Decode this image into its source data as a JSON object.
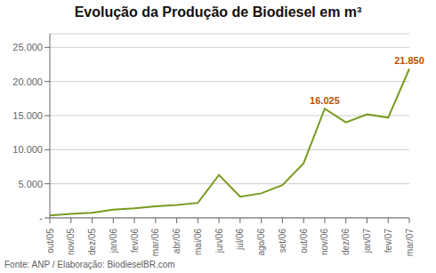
{
  "chart_data": {
    "type": "line",
    "title": "Evolução da Produção de Biodiesel em m³",
    "footnote": "Fonte: ANP / Elaboração: BiodieselBR.com",
    "categories": [
      "out/05",
      "nov/05",
      "dez/05",
      "jan/06",
      "fev/06",
      "mar/06",
      "abr/06",
      "mai/06",
      "jun/06",
      "jul/06",
      "ago/06",
      "set/06",
      "out/06",
      "nov/06",
      "dez/06",
      "jan/07",
      "fev/07",
      "mar/07"
    ],
    "values": [
      350,
      600,
      750,
      1200,
      1400,
      1700,
      1900,
      2200,
      6300,
      3100,
      3600,
      4800,
      8000,
      16025,
      14000,
      15200,
      14700,
      21850
    ],
    "color": "#7a9a1e",
    "ylim": [
      0,
      27000
    ],
    "yticks": [
      {
        "value": 0,
        "label": "-"
      },
      {
        "value": 5000,
        "label": "5.000"
      },
      {
        "value": 10000,
        "label": "10.000"
      },
      {
        "value": 15000,
        "label": "15.000"
      },
      {
        "value": 20000,
        "label": "20.000"
      },
      {
        "value": 25000,
        "label": "25.000"
      }
    ],
    "grid": true,
    "annotations": [
      {
        "text": "16.025",
        "x": "nov/06",
        "y": 16025,
        "color": "#c05000"
      },
      {
        "text": "21.850",
        "x": "mar/07",
        "y": 21850,
        "color": "#c05000"
      }
    ]
  }
}
